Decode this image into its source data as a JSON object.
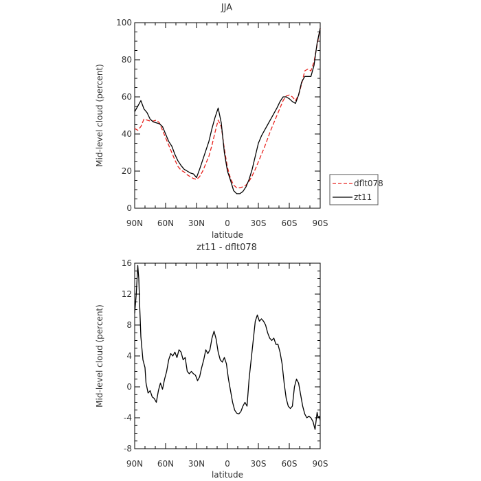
{
  "chart_data": [
    {
      "type": "line",
      "title": "JJA",
      "xlabel": "latitude",
      "ylabel": "Mid-level cloud (percent)",
      "xlim": [
        90,
        -90
      ],
      "ylim": [
        0,
        100
      ],
      "x_ticks": [
        {
          "value": 90,
          "label": "90N"
        },
        {
          "value": 60,
          "label": "60N"
        },
        {
          "value": 30,
          "label": "30N"
        },
        {
          "value": 0,
          "label": "0"
        },
        {
          "value": -30,
          "label": "30S"
        },
        {
          "value": -60,
          "label": "60S"
        },
        {
          "value": -90,
          "label": "90S"
        }
      ],
      "y_ticks": [
        0,
        20,
        40,
        60,
        80,
        100
      ],
      "grid": false,
      "legend": {
        "position": "right-middle"
      },
      "series": [
        {
          "name": "dflt078",
          "color": "#e8231e",
          "dash": "dashed",
          "x": [
            90,
            87,
            84,
            81,
            78,
            75,
            72,
            69,
            66,
            63,
            60,
            57,
            54,
            51,
            48,
            45,
            42,
            39,
            36,
            33,
            30,
            27,
            24,
            21,
            18,
            15,
            12,
            9,
            6,
            3,
            0,
            -3,
            -6,
            -9,
            -12,
            -15,
            -18,
            -21,
            -24,
            -27,
            -30,
            -33,
            -36,
            -39,
            -42,
            -45,
            -48,
            -51,
            -54,
            -57,
            -60,
            -63,
            -66,
            -69,
            -72,
            -75,
            -78,
            -81,
            -84,
            -87,
            -90
          ],
          "values": [
            43,
            42,
            44,
            48,
            47.5,
            47,
            47,
            47.5,
            46,
            42,
            38,
            34,
            30,
            26,
            22.5,
            20.5,
            19.5,
            18,
            17,
            16,
            15.5,
            17,
            20,
            24,
            28,
            34,
            41,
            47.5,
            44,
            32,
            22,
            16,
            12.5,
            11,
            11,
            11.5,
            12.5,
            14.5,
            17.5,
            21,
            25,
            29,
            33,
            37.5,
            42,
            46,
            50,
            54,
            58,
            60.5,
            61,
            60,
            58,
            61,
            67,
            74,
            75,
            74,
            79,
            88,
            97
          ]
        },
        {
          "name": "zt11",
          "color": "#000000",
          "dash": "solid",
          "x": [
            90,
            87,
            84,
            81,
            78,
            75,
            72,
            69,
            66,
            63,
            60,
            57,
            54,
            51,
            48,
            45,
            42,
            39,
            36,
            33,
            30,
            27,
            24,
            21,
            18,
            15,
            12,
            9,
            6,
            3,
            0,
            -3,
            -6,
            -9,
            -12,
            -15,
            -18,
            -21,
            -24,
            -27,
            -30,
            -33,
            -36,
            -39,
            -42,
            -45,
            -48,
            -51,
            -54,
            -57,
            -60,
            -63,
            -66,
            -69,
            -72,
            -75,
            -78,
            -81,
            -84,
            -87,
            -90
          ],
          "values": [
            52,
            55,
            58,
            53.5,
            51.5,
            48,
            46.5,
            46,
            45.5,
            44,
            40,
            36,
            33.5,
            29,
            25.5,
            23,
            21,
            20,
            19,
            18.5,
            16.5,
            21,
            26,
            31,
            36,
            43,
            49,
            54,
            46,
            30,
            20,
            15,
            9.5,
            7.8,
            7.8,
            9,
            11.5,
            15.5,
            21,
            28,
            35,
            39,
            42,
            45,
            48,
            51,
            54,
            57.5,
            60,
            60,
            59,
            57.5,
            56.5,
            61,
            68,
            71,
            71,
            71,
            77,
            89,
            97
          ]
        }
      ]
    },
    {
      "type": "line",
      "title": "zt11 - dflt078",
      "xlabel": "latitude",
      "ylabel": "Mid-level cloud (percent)",
      "xlim": [
        90,
        -90
      ],
      "ylim": [
        -8,
        16
      ],
      "x_ticks": [
        {
          "value": 90,
          "label": "90N"
        },
        {
          "value": 60,
          "label": "60N"
        },
        {
          "value": 30,
          "label": "30N"
        },
        {
          "value": 0,
          "label": "0"
        },
        {
          "value": -30,
          "label": "30S"
        },
        {
          "value": -60,
          "label": "60S"
        },
        {
          "value": -90,
          "label": "90S"
        }
      ],
      "y_ticks": [
        -8,
        -4,
        0,
        4,
        8,
        12,
        16
      ],
      "grid": false,
      "series": [
        {
          "color": "#000000",
          "dash": "solid",
          "x": [
            90,
            88.5,
            87,
            86,
            85,
            84,
            82,
            80,
            79,
            77,
            75,
            73,
            71,
            69,
            67,
            65,
            63,
            61,
            59,
            57,
            55,
            53,
            51,
            49,
            47,
            45,
            43,
            41,
            39,
            37,
            35,
            33,
            31,
            29,
            27,
            25,
            23,
            21,
            19,
            17,
            15,
            13,
            11,
            9,
            7,
            5,
            3,
            1,
            -1,
            -3,
            -5,
            -7,
            -9,
            -11,
            -13,
            -15,
            -17,
            -19,
            -21,
            -23,
            -25,
            -27,
            -29,
            -31,
            -33,
            -35,
            -37,
            -39,
            -41,
            -43,
            -45,
            -47,
            -49,
            -51,
            -53,
            -55,
            -57,
            -59,
            -61,
            -63,
            -65,
            -67,
            -69,
            -71,
            -73,
            -75,
            -77,
            -79,
            -81,
            -83,
            -85,
            -87,
            -88,
            -89,
            -90
          ],
          "values": [
            9.5,
            12,
            15.7,
            14,
            10,
            6.5,
            3.5,
            2.5,
            0.5,
            -0.8,
            -0.5,
            -1.3,
            -1.5,
            -2,
            -0.5,
            0.5,
            -0.3,
            1,
            2,
            3.5,
            4.3,
            4,
            4.5,
            3.8,
            4.8,
            4.5,
            3.5,
            3.8,
            2,
            1.7,
            2,
            1.7,
            1.5,
            0.8,
            1.3,
            2.5,
            3.5,
            4.8,
            4.3,
            4.8,
            6.3,
            7.2,
            6.2,
            4.5,
            3.5,
            3.2,
            3.8,
            3,
            1,
            -0.5,
            -2,
            -3,
            -3.4,
            -3.5,
            -3.2,
            -2.5,
            -2,
            -2.5,
            1,
            3.5,
            6,
            8.5,
            9.3,
            8.5,
            8.8,
            8.5,
            8,
            7,
            6.3,
            6,
            6.3,
            5.5,
            5.5,
            4.5,
            3,
            0.5,
            -1.5,
            -2.5,
            -2.8,
            -2.5,
            0,
            1,
            0.5,
            -1,
            -2.5,
            -3.5,
            -4,
            -3.8,
            -4,
            -4.5,
            -5.5,
            -3.3,
            -4,
            -3.8,
            -4.3
          ]
        }
      ]
    }
  ]
}
